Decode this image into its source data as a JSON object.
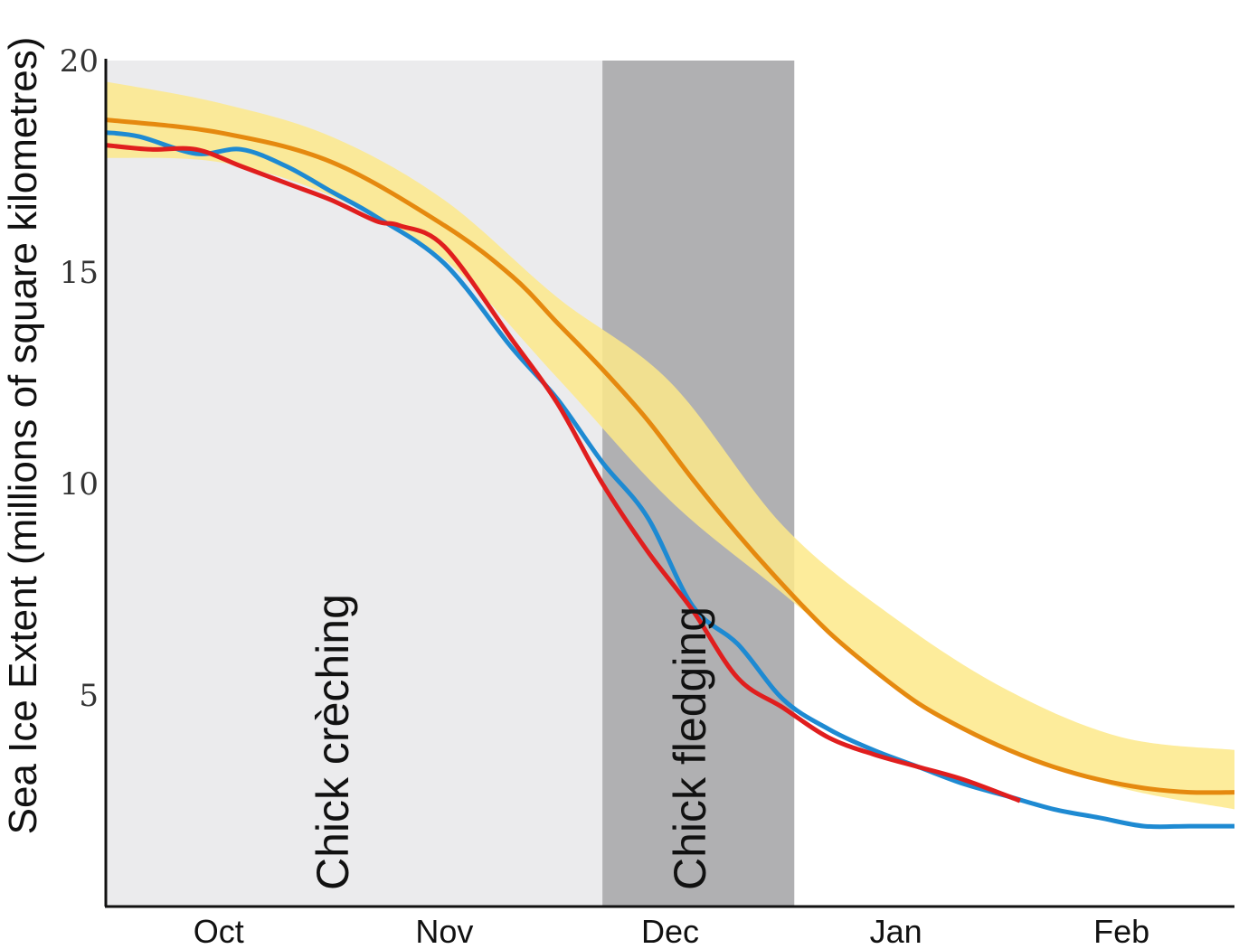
{
  "chart_data": {
    "type": "line",
    "title": "",
    "xlabel": "",
    "ylabel": "Sea Ice Extent (millions of square kilometres)",
    "ylim": [
      0,
      20
    ],
    "xlim": [
      0,
      5
    ],
    "yticks": [
      {
        "value": 5,
        "label": "5"
      },
      {
        "value": 10,
        "label": "10"
      },
      {
        "value": 15,
        "label": "15"
      },
      {
        "value": 20,
        "label": "20"
      }
    ],
    "xticks": [
      {
        "value": 0.5,
        "label": "Oct"
      },
      {
        "value": 1.5,
        "label": "Nov"
      },
      {
        "value": 2.5,
        "label": "Dec"
      },
      {
        "value": 3.5,
        "label": "Jan"
      },
      {
        "value": 4.5,
        "label": "Feb"
      }
    ],
    "shaded_periods": [
      {
        "label": "Chick crèching",
        "x0": 0,
        "x1": 2.2,
        "color": "#ebebed"
      },
      {
        "label": "Chick fledging",
        "x0": 2.2,
        "x1": 3.05,
        "color": "#b0b0b2"
      }
    ],
    "range_band": {
      "color": "#fde98a",
      "x": [
        0,
        0.5,
        1.0,
        1.5,
        2.0,
        2.5,
        3.0,
        3.5,
        4.0,
        4.5,
        5.0
      ],
      "upper": [
        19.5,
        19.0,
        18.2,
        16.7,
        14.4,
        12.4,
        9.0,
        6.8,
        5.1,
        4.0,
        3.7
      ],
      "lower": [
        17.7,
        17.6,
        16.8,
        15.3,
        12.5,
        9.6,
        7.4,
        5.2,
        3.7,
        2.8,
        2.3
      ]
    },
    "series": [
      {
        "color": "#e5890f",
        "x": [
          0,
          0.5,
          1.0,
          1.5,
          1.8,
          2.0,
          2.2,
          2.4,
          2.6,
          2.8,
          3.0,
          3.2,
          3.4,
          3.6,
          3.8,
          4.0,
          4.2,
          4.4,
          4.6,
          4.8,
          5.0
        ],
        "values": [
          18.6,
          18.3,
          17.6,
          16.1,
          14.9,
          13.8,
          12.7,
          11.5,
          10.1,
          8.8,
          7.6,
          6.5,
          5.6,
          4.8,
          4.2,
          3.7,
          3.3,
          3.0,
          2.8,
          2.7,
          2.7
        ]
      },
      {
        "color": "#1e8ad2",
        "x": [
          0,
          0.15,
          0.4,
          0.6,
          0.8,
          1.0,
          1.2,
          1.5,
          1.8,
          2.0,
          2.2,
          2.4,
          2.6,
          2.8,
          3.0,
          3.2,
          3.4,
          3.6,
          3.8,
          4.0,
          4.2,
          4.4,
          4.6,
          4.8,
          5.0
        ],
        "values": [
          18.3,
          18.2,
          17.8,
          17.9,
          17.5,
          16.9,
          16.3,
          15.2,
          13.2,
          12.0,
          10.5,
          9.2,
          7.1,
          6.2,
          4.9,
          4.2,
          3.7,
          3.3,
          2.9,
          2.6,
          2.3,
          2.1,
          1.9,
          1.9,
          1.9
        ]
      },
      {
        "color": "#e01e1e",
        "x": [
          0,
          0.2,
          0.4,
          0.6,
          0.8,
          1.0,
          1.2,
          1.3,
          1.5,
          1.8,
          2.0,
          2.2,
          2.4,
          2.6,
          2.8,
          3.0,
          3.2,
          3.4,
          3.6,
          3.8,
          4.05
        ],
        "values": [
          18.0,
          17.9,
          17.9,
          17.5,
          17.1,
          16.7,
          16.2,
          16.1,
          15.6,
          13.4,
          11.9,
          10.0,
          8.4,
          7.0,
          5.4,
          4.7,
          4.0,
          3.6,
          3.3,
          3.0,
          2.5
        ]
      }
    ]
  }
}
